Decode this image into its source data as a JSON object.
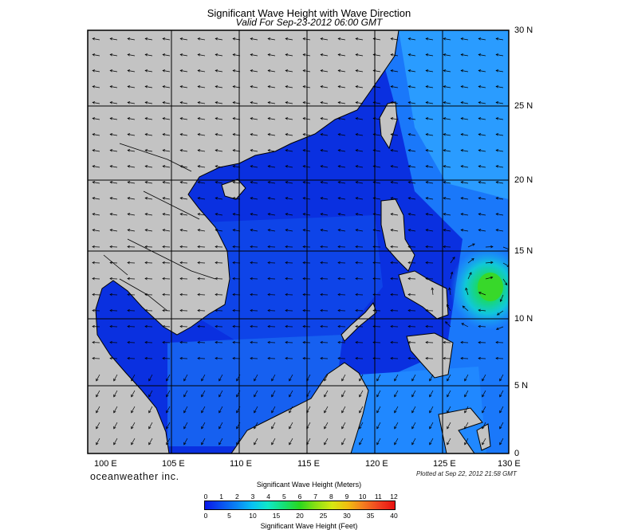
{
  "title": "Significant Wave Height with Wave Direction",
  "subtitle": "Valid For Sep-23-2012 06:00 GMT",
  "lat_labels": [
    "30 N",
    "25 N",
    "20 N",
    "15 N",
    "10 N",
    "5 N",
    "0"
  ],
  "lon_labels": [
    "100 E",
    "105 E",
    "110 E",
    "115 E",
    "120 E",
    "125 E",
    "130 E"
  ],
  "brand": "oceanweather inc.",
  "plotted": "Plotted at Sep 22, 2012 21:58 GMT",
  "colorbar": {
    "title_meters": "Significant Wave Height (Meters)",
    "title_feet": "Significant Wave Height (Feet)",
    "meters_ticks": [
      "0",
      "1",
      "2",
      "3",
      "4",
      "5",
      "6",
      "7",
      "8",
      "9",
      "10",
      "11",
      "12"
    ],
    "feet_ticks": [
      "0",
      "5",
      "10",
      "15",
      "20",
      "25",
      "30",
      "35",
      "40"
    ]
  },
  "colors": {
    "land": "#c3c3c3",
    "sea_low": "#0a32e6",
    "sea_mid": "#1e82ff",
    "peak": "#2ad81e"
  }
}
